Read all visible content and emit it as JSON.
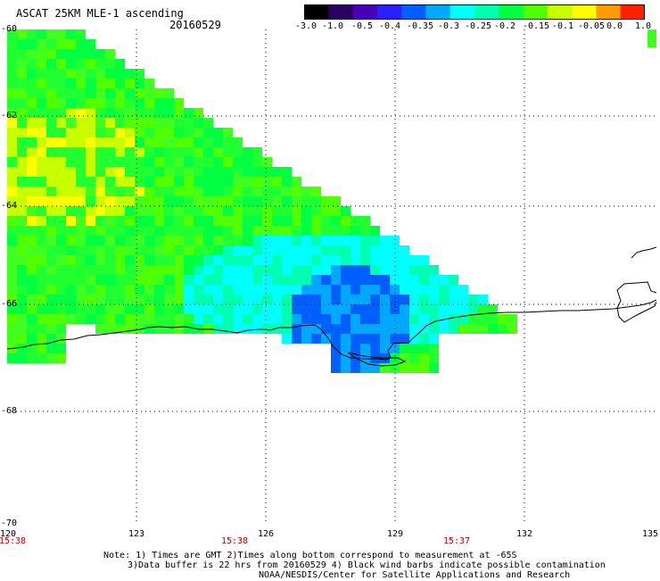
{
  "header": {
    "title": "ASCAT 25KM MLE-1 ascending",
    "date": "20160529"
  },
  "colorbar": {
    "labels": [
      "-3.0",
      "-1.0",
      "-0.5",
      "-0.4",
      "-0.35",
      "-0.3",
      "-0.25",
      "-0.2",
      "-0.15",
      "-0.1",
      "-0.05",
      "0.0",
      "1.0"
    ],
    "colors": [
      "#000000",
      "#2a0060",
      "#4800b8",
      "#2a20ff",
      "#0060ff",
      "#00a8ff",
      "#00ffff",
      "#00ffb0",
      "#00ff40",
      "#50ff00",
      "#c8ff00",
      "#ffff00",
      "#ff9a00",
      "#ff2000"
    ]
  },
  "map": {
    "lat_ticks": [
      "-60",
      "-62",
      "-64",
      "-66",
      "-68",
      "-70"
    ],
    "lon_ticks": [
      "120",
      "123",
      "126",
      "129",
      "132",
      "135"
    ],
    "times": [
      "15:38",
      "15:38",
      "15:37"
    ]
  },
  "footer": {
    "line1": "Note: 1) Times are GMT 2)Times along bottom correspond to measurement at -65S",
    "line2": "3)Data buffer is 22 hrs from 20160529 4) Black wind barbs indicate possible contamination",
    "line3": "NOAA/NESDIS/Center for Satellite Applications and Research"
  }
}
